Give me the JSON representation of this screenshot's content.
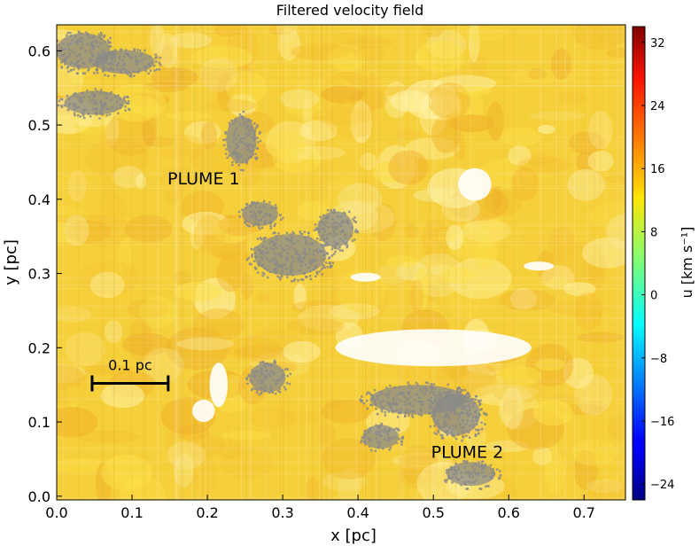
{
  "chart_data": {
    "type": "heatmap",
    "title": "Filtered velocity field",
    "xlabel": "x [pc]",
    "ylabel": "y [pc]",
    "xlim": [
      0.0,
      0.755
    ],
    "ylim": [
      -0.005,
      0.635
    ],
    "xticks": [
      0.0,
      0.1,
      0.2,
      0.3,
      0.4,
      0.5,
      0.6,
      0.7
    ],
    "xtick_labels": [
      "0.0",
      "0.1",
      "0.2",
      "0.3",
      "0.4",
      "0.5",
      "0.6",
      "0.7"
    ],
    "yticks": [
      0.0,
      0.1,
      0.2,
      0.3,
      0.4,
      0.5,
      0.6
    ],
    "ytick_labels": [
      "0.0",
      "0.1",
      "0.2",
      "0.3",
      "0.4",
      "0.5",
      "0.6"
    ],
    "colorbar": {
      "label": "u [km s⁻¹]",
      "range": [
        -26,
        34
      ],
      "ticks": [
        -24,
        -16,
        -8,
        0,
        8,
        16,
        24,
        32
      ],
      "tick_labels": [
        "−24",
        "−16",
        "−8",
        "0",
        "8",
        "16",
        "24",
        "32"
      ],
      "colormap": "jet"
    },
    "masked_color": "#8a8a8a",
    "typical_value_range": [
      13,
      18
    ],
    "annotations": [
      {
        "text": "PLUME 1",
        "x": 0.195,
        "y": 0.42
      },
      {
        "text": "PLUME 2",
        "x": 0.545,
        "y": 0.052
      }
    ],
    "scale_bar": {
      "label": "0.1 pc",
      "x_start": 0.047,
      "x_end": 0.148,
      "y": 0.152
    },
    "masked_regions": [
      {
        "cx": 0.035,
        "cy": 0.6,
        "rx": 0.045,
        "ry": 0.03
      },
      {
        "cx": 0.09,
        "cy": 0.585,
        "rx": 0.05,
        "ry": 0.02
      },
      {
        "cx": 0.05,
        "cy": 0.53,
        "rx": 0.05,
        "ry": 0.02
      },
      {
        "cx": 0.245,
        "cy": 0.48,
        "rx": 0.025,
        "ry": 0.04
      },
      {
        "cx": 0.31,
        "cy": 0.325,
        "rx": 0.06,
        "ry": 0.035
      },
      {
        "cx": 0.37,
        "cy": 0.36,
        "rx": 0.03,
        "ry": 0.03
      },
      {
        "cx": 0.27,
        "cy": 0.38,
        "rx": 0.03,
        "ry": 0.02
      },
      {
        "cx": 0.28,
        "cy": 0.16,
        "rx": 0.03,
        "ry": 0.025
      },
      {
        "cx": 0.48,
        "cy": 0.13,
        "rx": 0.08,
        "ry": 0.025
      },
      {
        "cx": 0.53,
        "cy": 0.11,
        "rx": 0.04,
        "ry": 0.035
      },
      {
        "cx": 0.55,
        "cy": 0.03,
        "rx": 0.04,
        "ry": 0.02
      },
      {
        "cx": 0.43,
        "cy": 0.08,
        "rx": 0.03,
        "ry": 0.02
      }
    ],
    "white_regions": [
      {
        "cx": 0.555,
        "cy": 0.42,
        "rx": 0.022,
        "ry": 0.022
      },
      {
        "cx": 0.64,
        "cy": 0.31,
        "rx": 0.02,
        "ry": 0.006
      },
      {
        "cx": 0.195,
        "cy": 0.115,
        "rx": 0.015,
        "ry": 0.015
      },
      {
        "cx": 0.215,
        "cy": 0.15,
        "rx": 0.012,
        "ry": 0.03
      },
      {
        "cx": 0.41,
        "cy": 0.295,
        "rx": 0.02,
        "ry": 0.006
      },
      {
        "cx": 0.5,
        "cy": 0.2,
        "rx": 0.13,
        "ry": 0.025
      }
    ],
    "grid": false
  }
}
